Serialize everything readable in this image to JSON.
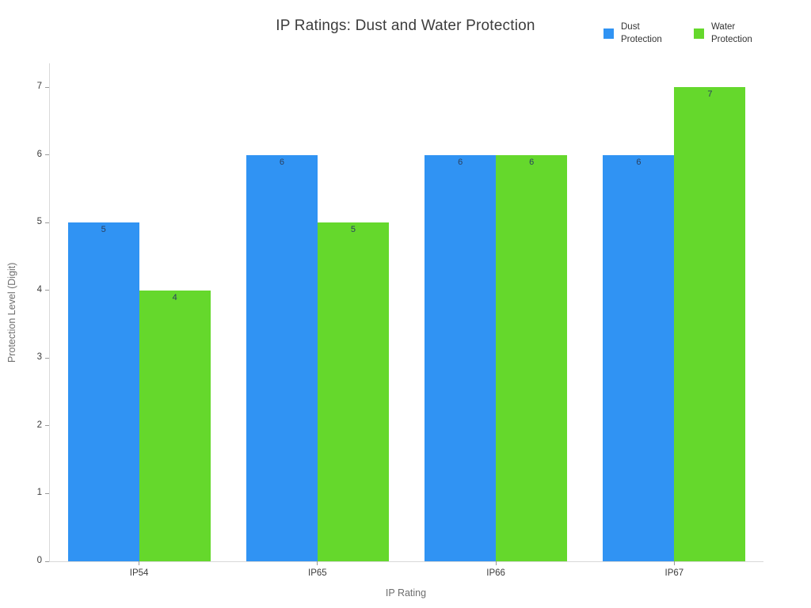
{
  "chart_data": {
    "type": "bar",
    "title": "IP Ratings: Dust and Water Protection",
    "xlabel": "IP Rating",
    "ylabel": "Protection Level (Digit)",
    "categories": [
      "IP54",
      "IP65",
      "IP66",
      "IP67"
    ],
    "series": [
      {
        "name": "Dust Protection",
        "color": "#3093F3",
        "values": [
          5,
          6,
          6,
          6
        ]
      },
      {
        "name": "Water Protection",
        "color": "#65D82C",
        "values": [
          4,
          5,
          6,
          7
        ]
      }
    ],
    "yticks": [
      0,
      1,
      2,
      3,
      4,
      5,
      6,
      7
    ],
    "ylim": [
      0,
      7.35
    ],
    "grid": false,
    "bar_value_labels": true,
    "legend_position": "top-right",
    "colors": {
      "axis_line": "#d9d9d9",
      "tick_mark": "#9a9a9a",
      "tick_text": "#3c3c3c",
      "axis_title_text": "#6e6e6e",
      "title_text": "#3d3d3d",
      "bar_label_text": "#2a3f5f",
      "background": "#ffffff"
    }
  }
}
